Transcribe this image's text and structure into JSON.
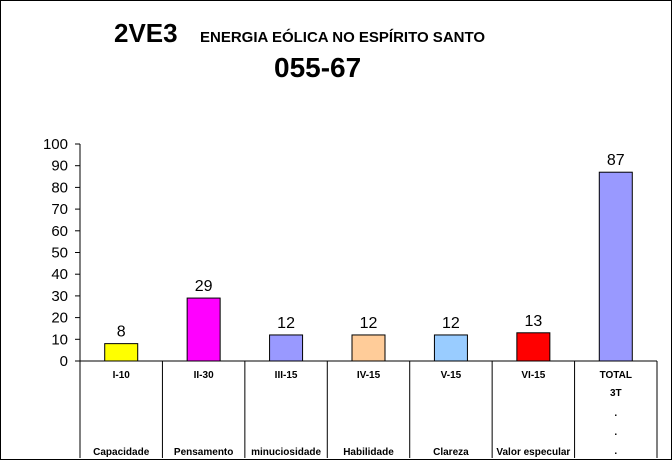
{
  "header": {
    "code": "2VE3",
    "name": "ENERGIA EÓLICA NO ESPÍRITO SANTO",
    "number": "055-67"
  },
  "chart_data": {
    "type": "bar",
    "categories": [
      "I-10",
      "II-30",
      "III-15",
      "IV-15",
      "V-15",
      "VI-15",
      "TOTAL"
    ],
    "subcategories": [
      "Capacidade",
      "Pensamento",
      "minuciosidade",
      "Habilidade",
      "Clareza",
      "Valor especular",
      "3T"
    ],
    "total_extra_marks": [
      ".",
      ".",
      "."
    ],
    "values": [
      8,
      29,
      12,
      12,
      12,
      13,
      87
    ],
    "colors": [
      "#ffff00",
      "#ff00ff",
      "#9999ff",
      "#ffcc99",
      "#99ccff",
      "#ff0000",
      "#9999ff"
    ],
    "yticks": [
      0,
      10,
      20,
      30,
      40,
      50,
      60,
      70,
      80,
      90,
      100
    ],
    "ylim": [
      0,
      100
    ],
    "grid": false,
    "data_labels": true
  }
}
